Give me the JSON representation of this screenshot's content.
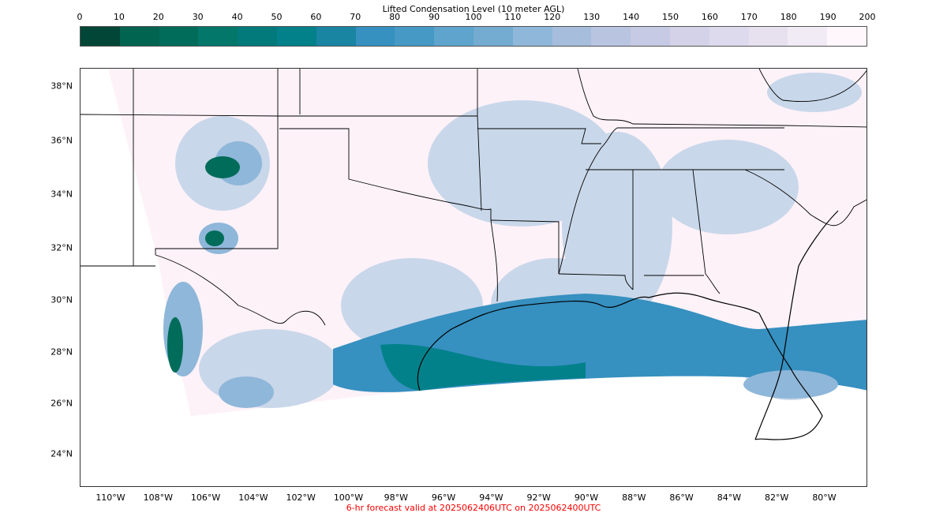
{
  "colorbar": {
    "title": "Lifted Condensation Level (10 meter AGL)",
    "ticks": [
      "0",
      "10",
      "20",
      "30",
      "40",
      "50",
      "60",
      "70",
      "80",
      "90",
      "100",
      "110",
      "120",
      "130",
      "140",
      "150",
      "160",
      "170",
      "180",
      "190",
      "200"
    ],
    "colors": [
      "#014636",
      "#016450",
      "#016c59",
      "#02776a",
      "#027a7c",
      "#02818a",
      "#1a84a3",
      "#3690c0",
      "#4599c4",
      "#5ea4cc",
      "#74abd0",
      "#8fb7d9",
      "#a6bddb",
      "#b8c4e0",
      "#c7cae4",
      "#d3d2e8",
      "#dedaee",
      "#e7e1ef",
      "#f1ebf5",
      "#fff7fb"
    ]
  },
  "map": {
    "lat_labels": [
      "38°N",
      "36°N",
      "34°N",
      "32°N",
      "30°N",
      "28°N",
      "26°N",
      "24°N"
    ],
    "lon_labels": [
      "110°W",
      "108°W",
      "106°W",
      "104°W",
      "102°W",
      "100°W",
      "98°W",
      "96°W",
      "94°W",
      "92°W",
      "90°W",
      "88°W",
      "86°W",
      "84°W",
      "82°W",
      "80°W"
    ],
    "field_colors": {
      "background": "#fdf2f8",
      "light_blue": "#c9d7ea",
      "mid_blue": "#8fb7d9",
      "teal": "#3690c0",
      "deep_teal": "#02818a",
      "dark_green": "#016c59"
    }
  },
  "footer": {
    "text": "6-hr forecast valid at 2025062406UTC on 2025062400UTC",
    "color": "#ff0000"
  }
}
